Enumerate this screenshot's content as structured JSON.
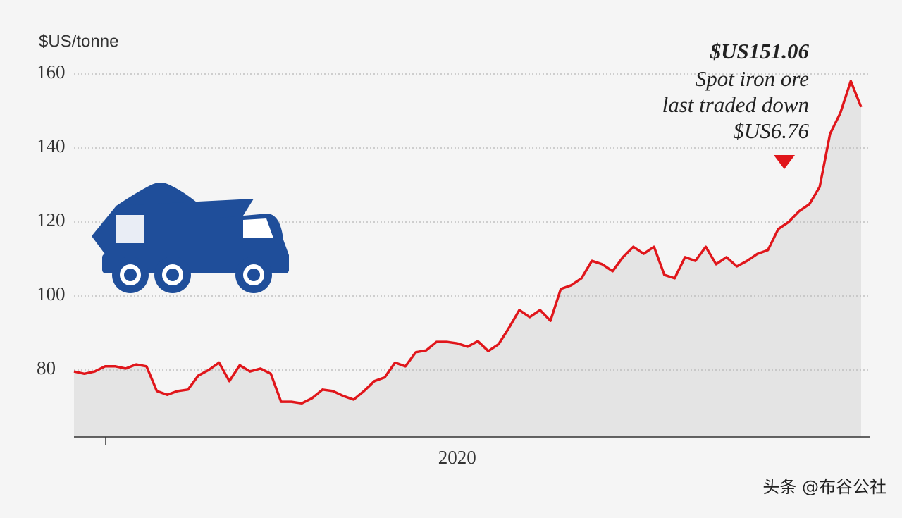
{
  "chart_data": {
    "type": "line",
    "y_label": "$US/tonne",
    "annotations": [
      "$US151.06",
      "Spot iron ore",
      "last traded down",
      "$US6.76"
    ],
    "watermark": "头条 @布谷公社",
    "color": "#e0161b",
    "area_color": "#e4e4e4",
    "grid": true,
    "ylim": [
      62,
      165
    ],
    "yticks": [
      80,
      100,
      120,
      140,
      160
    ],
    "categories": [
      null,
      null,
      null,
      null,
      null,
      null,
      null,
      null,
      null,
      null,
      null,
      null,
      null,
      null,
      null,
      null,
      null,
      null,
      null,
      null,
      null,
      null,
      null,
      null,
      null,
      null,
      null,
      null,
      null,
      null,
      null,
      null,
      null,
      null,
      null,
      null,
      null,
      "2020",
      null,
      null,
      null,
      null,
      null,
      null,
      null,
      null,
      null,
      null,
      null,
      null,
      null,
      null,
      null,
      null,
      null,
      null,
      null,
      null,
      null,
      null,
      null,
      null,
      null,
      null,
      null,
      null,
      null,
      null,
      null,
      null,
      null,
      null,
      null,
      null,
      null,
      null,
      null
    ],
    "values": [
      79.6,
      79,
      79.6,
      81,
      81,
      80.4,
      81.5,
      81,
      74.3,
      73.3,
      74.3,
      74.7,
      78.5,
      80,
      82,
      77,
      81.3,
      79.6,
      80.4,
      79,
      71.4,
      71.4,
      71,
      72.4,
      74.7,
      74.3,
      73,
      72,
      74.3,
      77,
      78,
      82,
      81,
      84.8,
      85.3,
      87.6,
      87.6,
      87.2,
      86.3,
      87.8,
      85.1,
      87,
      91.4,
      96.2,
      94.3,
      96.2,
      93.3,
      101.9,
      102.9,
      104.8,
      109.5,
      108.6,
      106.7,
      110.5,
      113.3,
      111.4,
      113.3,
      105.7,
      104.8,
      110.5,
      109.5,
      113.3,
      108.6,
      110.5,
      108,
      109.5,
      111.4,
      112.4,
      118.1,
      120,
      122.9,
      124.8,
      129.5,
      143.8,
      149.5,
      158.1,
      151.06
    ]
  }
}
